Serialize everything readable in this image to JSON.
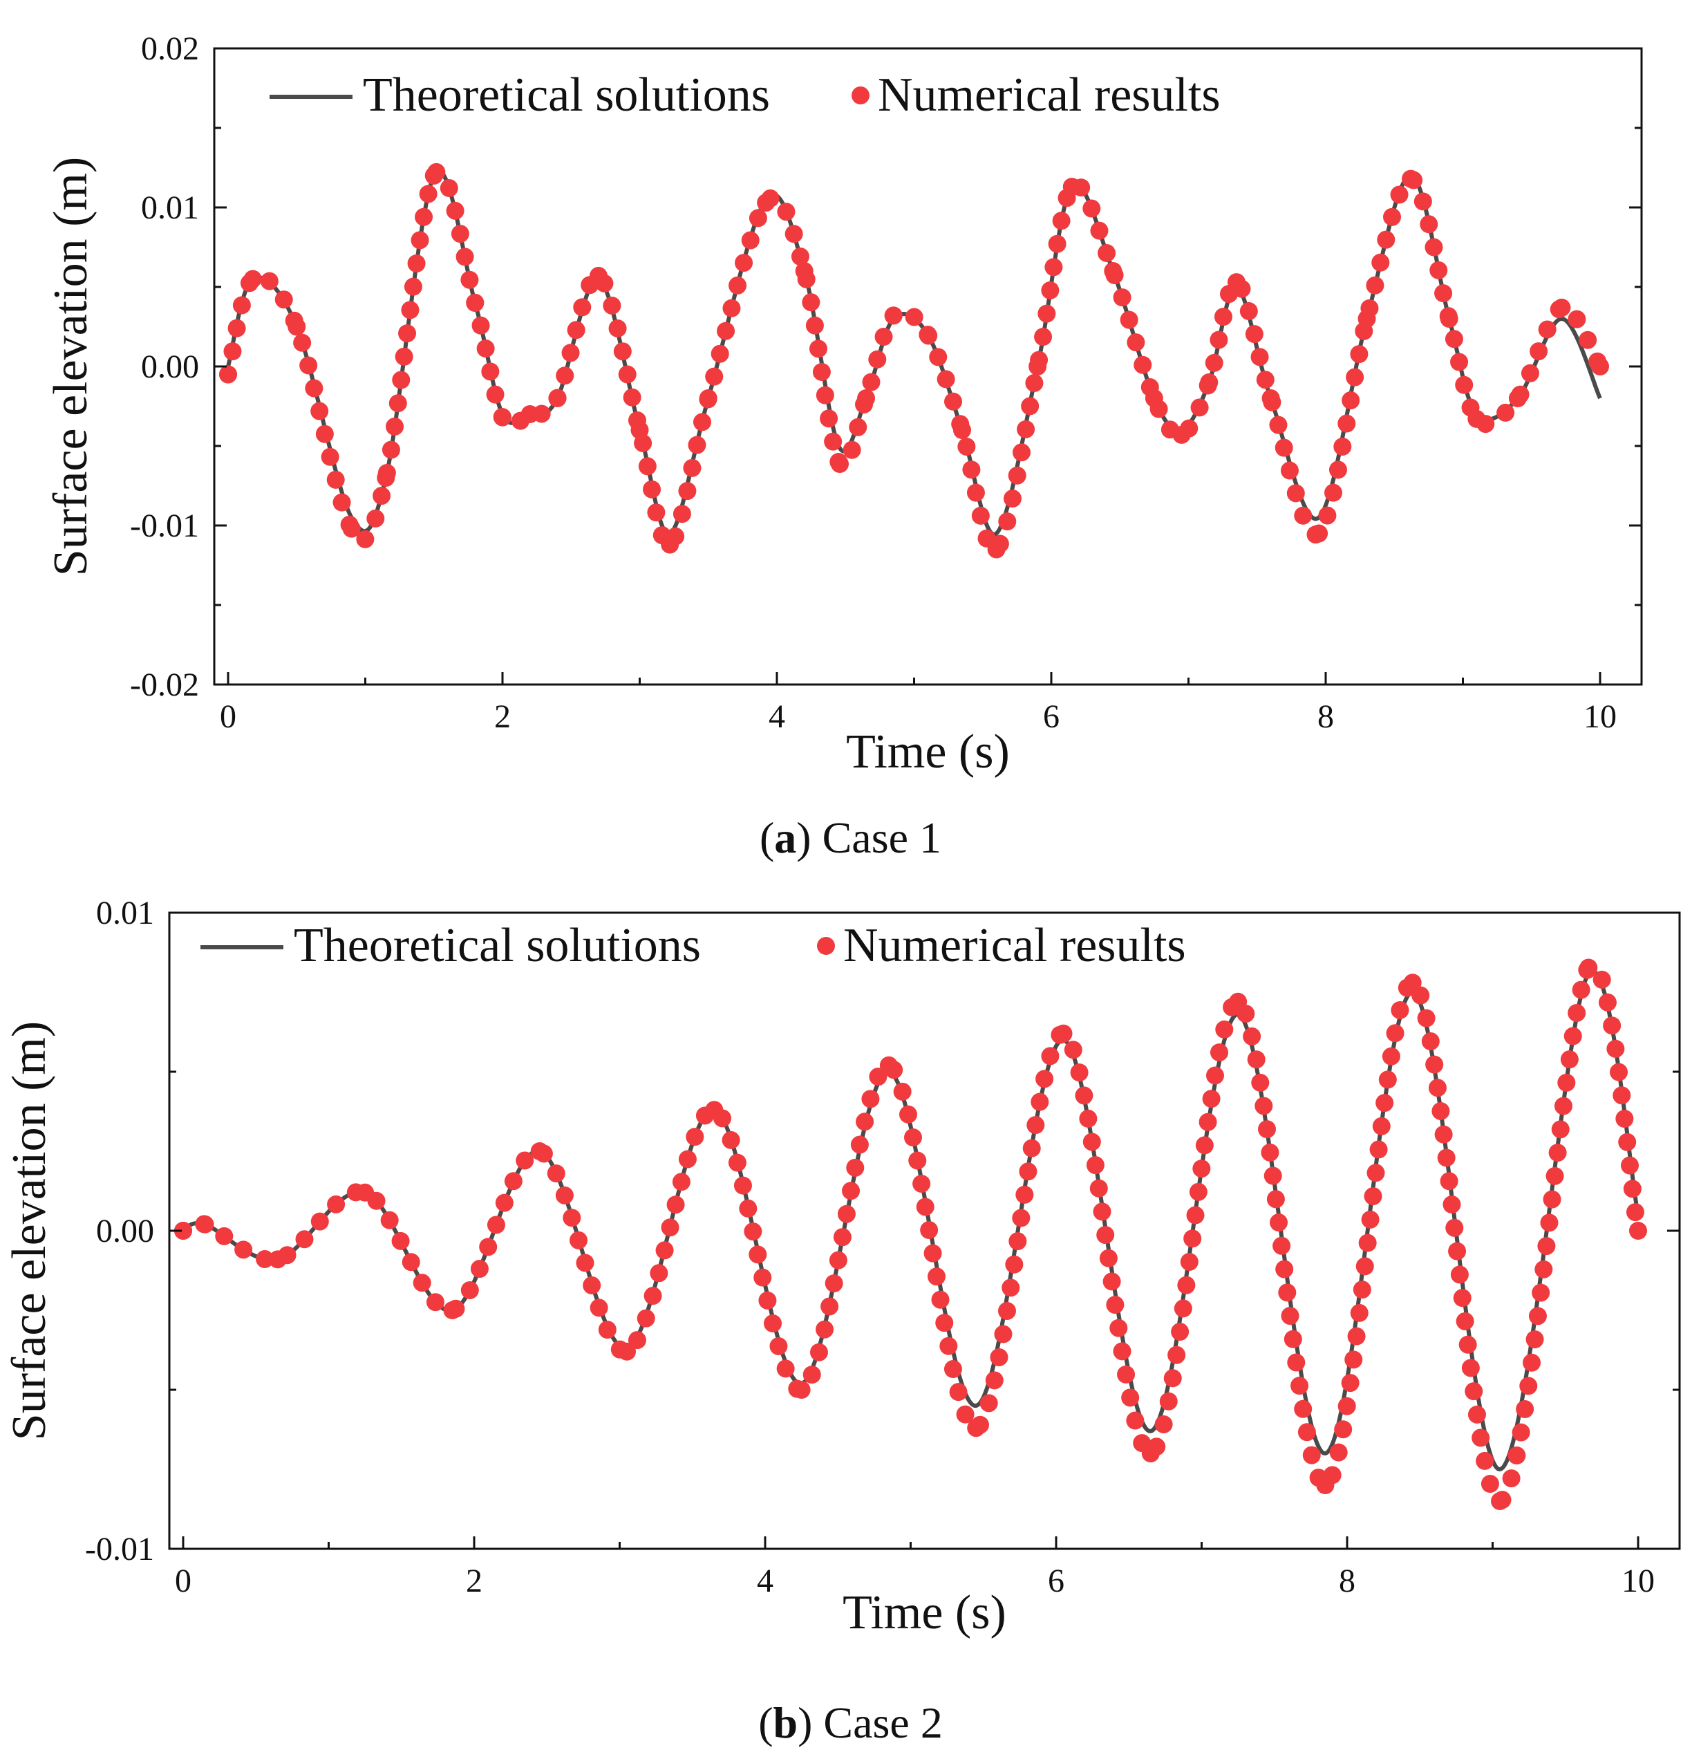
{
  "chart_data": [
    {
      "type": "line",
      "panel": "a",
      "caption_letter": "a",
      "caption_text": "Case 1",
      "xlabel": "Time (s)",
      "ylabel": "Surface elevation (m)",
      "xlim": [
        0,
        10
      ],
      "ylim": [
        -0.02,
        0.02
      ],
      "xticks": [
        0,
        2,
        4,
        6,
        8,
        10
      ],
      "xtick_labels": [
        "0",
        "2",
        "4",
        "6",
        "8",
        "10"
      ],
      "yticks": [
        -0.02,
        -0.01,
        0.0,
        0.01,
        0.02
      ],
      "ytick_labels": [
        "-0.02",
        "-0.01",
        "0.00",
        "0.01",
        "0.02"
      ],
      "legend": {
        "position": "top-left",
        "entries": [
          "Theoretical solutions",
          "Numerical results"
        ]
      },
      "series": [
        {
          "name": "Theoretical solutions",
          "style": "line",
          "color": "#4a4a4a",
          "x": [
            0,
            0.18,
            0.5,
            0.9,
            1.15,
            1.5,
            1.8,
            2.0,
            2.2,
            2.4,
            2.7,
            3.0,
            3.22,
            3.5,
            3.92,
            4.2,
            4.45,
            4.65,
            4.85,
            5.1,
            5.35,
            5.6,
            5.9,
            6.15,
            6.45,
            6.75,
            6.95,
            7.15,
            7.35,
            7.6,
            7.95,
            8.3,
            8.62,
            8.9,
            9.1,
            9.4,
            9.72,
            10.0
          ],
          "y": [
            0.0,
            0.0055,
            0.0025,
            -0.0095,
            -0.007,
            0.012,
            0.004,
            -0.003,
            -0.003,
            -0.002,
            0.0055,
            -0.004,
            -0.0105,
            -0.002,
            0.0105,
            0.006,
            -0.005,
            -0.002,
            0.003,
            0.002,
            -0.004,
            -0.0105,
            0.0,
            0.0113,
            0.006,
            -0.002,
            -0.004,
            -0.001,
            0.005,
            -0.002,
            -0.0095,
            0.003,
            0.012,
            0.003,
            -0.003,
            -0.002,
            0.003,
            -0.002
          ]
        },
        {
          "name": "Numerical results",
          "style": "markers",
          "color": "#f03a3e",
          "x": [
            0,
            0.18,
            0.5,
            0.9,
            1.15,
            1.5,
            1.8,
            2.0,
            2.2,
            2.4,
            2.7,
            3.0,
            3.22,
            3.5,
            3.92,
            4.2,
            4.45,
            4.65,
            4.85,
            5.1,
            5.35,
            5.6,
            5.9,
            6.15,
            6.45,
            6.75,
            6.95,
            7.15,
            7.35,
            7.6,
            7.95,
            8.3,
            8.62,
            8.9,
            9.1,
            9.4,
            9.72,
            10.0
          ],
          "y": [
            -0.0005,
            0.0055,
            0.0025,
            -0.0102,
            -0.007,
            0.012,
            0.004,
            -0.0032,
            -0.003,
            -0.002,
            0.0057,
            -0.004,
            -0.0112,
            -0.002,
            0.0103,
            0.006,
            -0.006,
            -0.002,
            0.0032,
            0.002,
            -0.004,
            -0.0115,
            0.0,
            0.0113,
            0.006,
            -0.002,
            -0.0043,
            -0.001,
            0.0053,
            -0.002,
            -0.0105,
            0.003,
            0.0118,
            0.003,
            -0.0033,
            -0.002,
            0.0037,
            0.0
          ]
        }
      ]
    },
    {
      "type": "line",
      "panel": "b",
      "caption_letter": "b",
      "caption_text": "Case 2",
      "xlabel": "Time (s)",
      "ylabel": "Surface elevation (m)",
      "xlim": [
        0,
        10
      ],
      "ylim": [
        -0.01,
        0.01
      ],
      "xticks": [
        0,
        2,
        4,
        6,
        8,
        10
      ],
      "xtick_labels": [
        "0",
        "2",
        "4",
        "6",
        "8",
        "10"
      ],
      "yticks": [
        -0.01,
        0.0,
        0.01
      ],
      "ytick_labels": [
        "-0.01",
        "0.00",
        "0.01"
      ],
      "legend": {
        "position": "top-left",
        "entries": [
          "Theoretical solutions",
          "Numerical results"
        ]
      },
      "series": [
        {
          "name": "Theoretical solutions",
          "style": "line",
          "color": "#4a4a4a",
          "x": [
            0,
            0.15,
            0.65,
            1.25,
            1.85,
            2.45,
            3.05,
            3.65,
            4.25,
            4.85,
            5.45,
            6.05,
            6.65,
            7.25,
            7.85,
            8.45,
            9.05,
            9.65,
            10.0
          ],
          "y": [
            0.0,
            0.0002,
            -0.0009,
            0.0012,
            -0.0025,
            0.0025,
            -0.0037,
            0.0038,
            -0.0048,
            0.005,
            -0.0055,
            0.006,
            -0.0063,
            0.0068,
            -0.007,
            0.0075,
            -0.0075,
            0.008,
            0.0005
          ]
        },
        {
          "name": "Numerical results",
          "style": "markers",
          "color": "#f03a3e",
          "x": [
            0,
            0.15,
            0.65,
            1.25,
            1.85,
            2.45,
            3.05,
            3.65,
            4.25,
            4.85,
            5.45,
            6.05,
            6.65,
            7.25,
            7.85,
            8.45,
            9.05,
            9.65,
            10.0
          ],
          "y": [
            0.0,
            0.0002,
            -0.0009,
            0.0012,
            -0.0025,
            0.0025,
            -0.0038,
            0.0038,
            -0.005,
            0.0052,
            -0.0062,
            0.0062,
            -0.007,
            0.0072,
            -0.008,
            0.0078,
            -0.0085,
            0.0082,
            0.0
          ]
        }
      ]
    }
  ]
}
